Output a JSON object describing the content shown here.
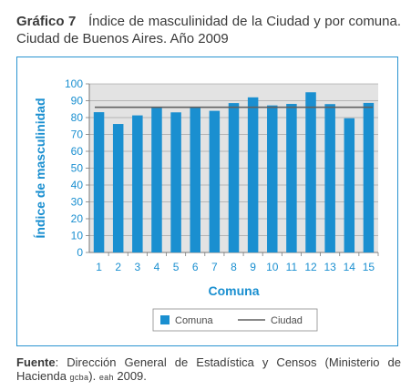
{
  "heading": {
    "number": "Gráfico 7",
    "text": "Índice de masculinidad de la Ciudad y por comuna. Ciudad de Buenos Aires. Año 2009"
  },
  "source": {
    "label": "Fuente",
    "text_1": ": Dirección General de Estadística y Censos (Ministerio de Hacienda ",
    "org": "gcba",
    "text_2": "). ",
    "survey": "eah",
    "text_3": " 2009."
  },
  "colors": {
    "bar": "#1a8fd0",
    "line": "#606060",
    "plot_bg": "#e3e3e3",
    "axis_text": "#1a8fd0"
  },
  "chart_data": {
    "type": "bar",
    "xlabel": "Comuna",
    "ylabel": "Índice de masculinidad",
    "ylim": [
      0,
      100
    ],
    "yticks": [
      0,
      10,
      20,
      30,
      40,
      50,
      60,
      70,
      80,
      90,
      100
    ],
    "grid": "horizontal",
    "legend_position": "bottom",
    "categories": [
      "1",
      "2",
      "3",
      "4",
      "5",
      "6",
      "7",
      "8",
      "9",
      "10",
      "11",
      "12",
      "13",
      "14",
      "15"
    ],
    "series": [
      {
        "name": "Comuna",
        "type": "bar",
        "values": [
          83.2,
          76.2,
          81.3,
          85.8,
          83.1,
          86.0,
          84.0,
          88.6,
          92.0,
          87.2,
          88.1,
          95.0,
          88.0,
          79.6,
          88.7
        ]
      },
      {
        "name": "Ciudad",
        "type": "line",
        "value": 86.1
      }
    ]
  }
}
